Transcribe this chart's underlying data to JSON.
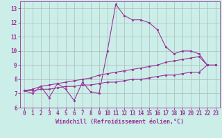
{
  "xlabel": "Windchill (Refroidissement éolien,°C)",
  "background_color": "#cceee8",
  "grid_color": "#aabbbb",
  "line_color": "#993399",
  "x": [
    0,
    1,
    2,
    3,
    4,
    5,
    6,
    7,
    8,
    9,
    10,
    11,
    12,
    13,
    14,
    15,
    16,
    17,
    18,
    19,
    20,
    21,
    22,
    23
  ],
  "y_main": [
    7.2,
    7.0,
    7.5,
    6.7,
    7.7,
    7.3,
    6.5,
    7.8,
    7.1,
    7.0,
    10.0,
    13.3,
    12.5,
    12.2,
    12.2,
    12.0,
    11.5,
    10.3,
    9.8,
    10.0,
    10.0,
    9.8,
    9.0,
    9.0
  ],
  "y_upper": [
    7.2,
    7.3,
    7.5,
    7.6,
    7.7,
    7.8,
    7.9,
    8.0,
    8.1,
    8.3,
    8.4,
    8.5,
    8.6,
    8.7,
    8.8,
    8.9,
    9.0,
    9.2,
    9.3,
    9.4,
    9.5,
    9.6,
    9.0,
    9.0
  ],
  "y_lower": [
    7.2,
    7.2,
    7.3,
    7.3,
    7.4,
    7.5,
    7.5,
    7.6,
    7.6,
    7.7,
    7.8,
    7.8,
    7.9,
    8.0,
    8.0,
    8.1,
    8.2,
    8.3,
    8.3,
    8.4,
    8.5,
    8.5,
    9.0,
    9.0
  ],
  "ylim": [
    6.0,
    13.5
  ],
  "xlim": [
    -0.5,
    23.5
  ],
  "yticks": [
    6,
    7,
    8,
    9,
    10,
    11,
    12,
    13
  ],
  "xticks": [
    0,
    1,
    2,
    3,
    4,
    5,
    6,
    7,
    8,
    9,
    10,
    11,
    12,
    13,
    14,
    15,
    16,
    17,
    18,
    19,
    20,
    21,
    22,
    23
  ],
  "tick_fontsize": 5.5,
  "xlabel_fontsize": 6.0
}
